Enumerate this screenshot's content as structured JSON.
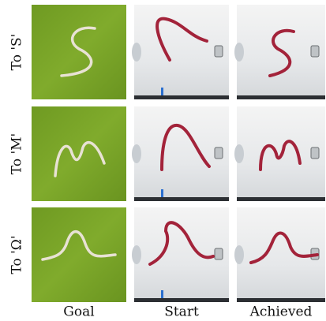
{
  "rows": [
    {
      "label": "To 'S'"
    },
    {
      "label": "To 'M'"
    },
    {
      "label": "To 'Ω'"
    }
  ],
  "columns": [
    "Goal",
    "Start",
    "Achieved"
  ]
}
